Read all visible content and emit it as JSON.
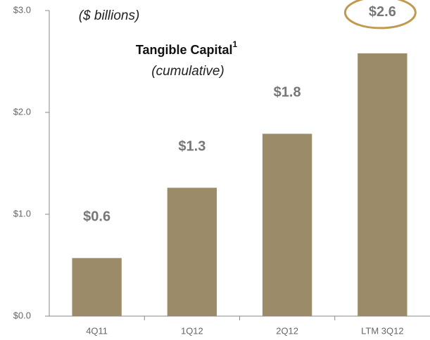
{
  "chart_data": {
    "type": "bar",
    "title": "Tangible Capital",
    "title_superscript": "1",
    "subtitle": "(cumulative)",
    "unit_note": "($ billions)",
    "categories": [
      "4Q11",
      "1Q12",
      "2Q12",
      "LTM 3Q12"
    ],
    "values": [
      0.57,
      1.26,
      1.79,
      2.58
    ],
    "value_labels": [
      "$0.6",
      "$1.3",
      "$1.8",
      "$2.6"
    ],
    "color": "#9c8b68",
    "ylim": [
      0,
      3
    ],
    "yticks": [
      {
        "value": 0,
        "label": "$0.0"
      },
      {
        "value": 1,
        "label": "$1.0"
      },
      {
        "value": 2,
        "label": "$2.0"
      },
      {
        "value": 3,
        "label": "$3.0"
      }
    ],
    "grid": false,
    "highlight": {
      "index": 3,
      "color": "#c09a50"
    }
  }
}
